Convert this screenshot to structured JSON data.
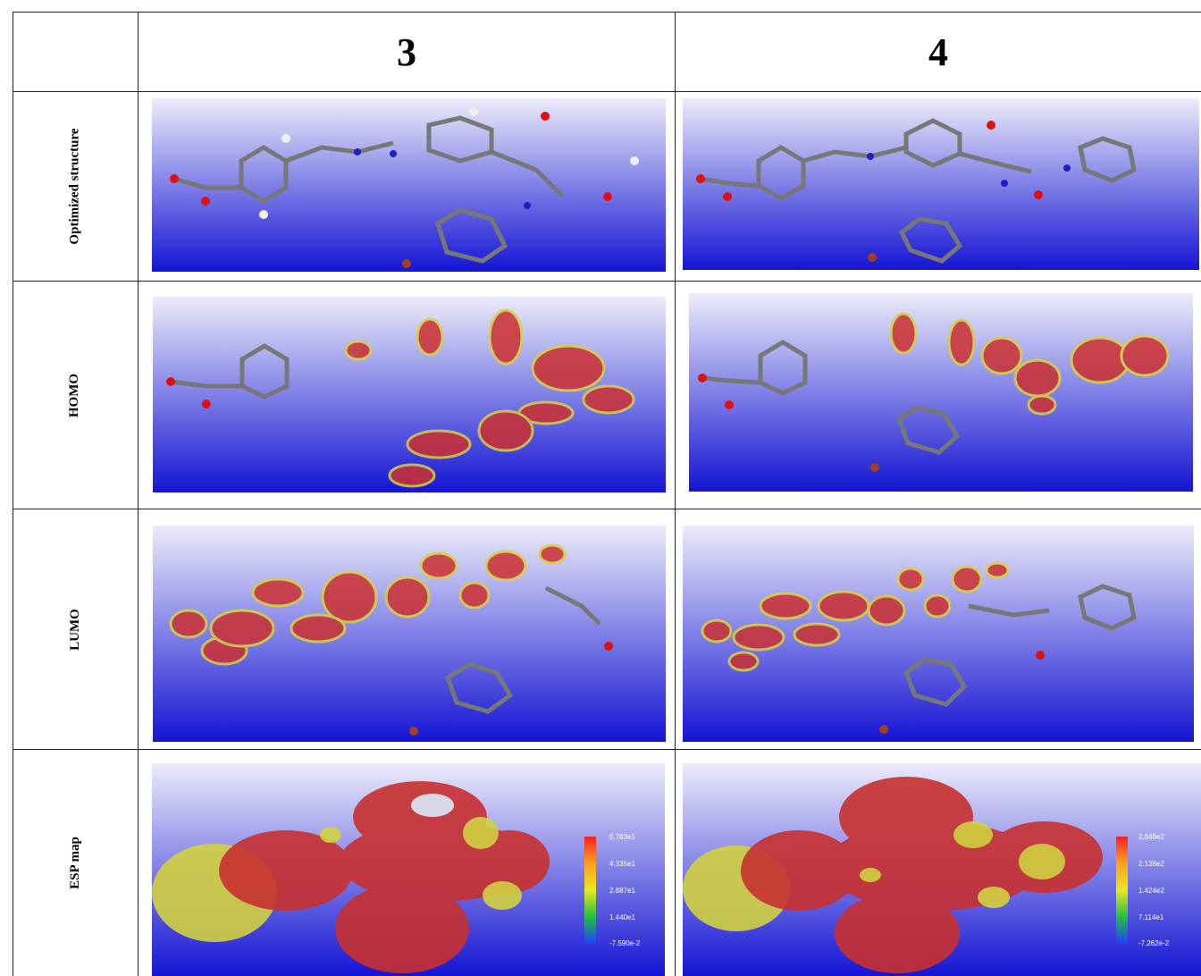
{
  "columns": [
    "3",
    "4"
  ],
  "rows": [
    "Optimized structure",
    "HOMO",
    "LUMO",
    "ESP map"
  ],
  "esp_scales": {
    "3": [
      "5.783e1",
      "4.335e1",
      "2.887e1",
      "1.440e1",
      "-7.590e-2"
    ],
    "4": [
      "2.848e2",
      "2.136e2",
      "1.424e2",
      "7.114e1",
      "-7.262e-2"
    ]
  },
  "colors": {
    "background_top": "#e8e8f8",
    "background_bottom": "#1010d0",
    "orbital_positive": "#cc3030",
    "orbital_negative": "#cccc30",
    "atom_carbon": "#808080",
    "atom_hydrogen": "#f0f0f0",
    "atom_oxygen": "#e01010",
    "atom_nitrogen": "#2020c0",
    "atom_bromine": "#a04020"
  }
}
